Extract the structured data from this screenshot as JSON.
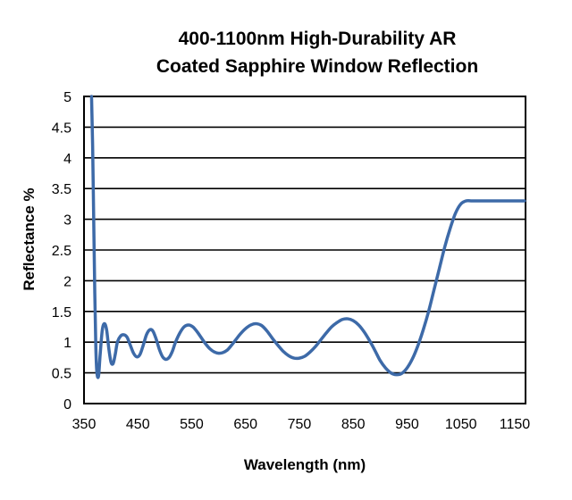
{
  "chart_data": {
    "type": "line",
    "title_lines": [
      "400-1100nm High-Durability AR",
      "Coated Sapphire Window Reflection"
    ],
    "xlabel": "Wavelength (nm)",
    "ylabel": "Reflectance %",
    "xlim": [
      350,
      1170
    ],
    "ylim": [
      0,
      5
    ],
    "x_ticks": [
      350,
      450,
      550,
      650,
      750,
      850,
      950,
      1050,
      1150
    ],
    "y_ticks": [
      0,
      0.5,
      1,
      1.5,
      2,
      2.5,
      3,
      3.5,
      4,
      4.5,
      5
    ],
    "y_tick_labels": [
      "0",
      "0.5",
      "1",
      "1.5",
      "2",
      "2.5",
      "3",
      "3.5",
      "4",
      "4.5",
      "5"
    ],
    "grid": "horizontal",
    "line_color": "#3d6aa8",
    "series": [
      {
        "x": [
          364,
          366,
          368,
          370,
          372,
          374,
          377,
          380,
          384,
          388,
          392,
          396,
          400,
          404,
          408,
          412,
          418,
          424,
          430,
          436,
          442,
          448,
          454,
          460,
          466,
          472,
          478,
          484,
          490,
          496,
          502,
          508,
          514,
          520,
          528,
          536,
          544,
          552,
          560,
          568,
          576,
          584,
          592,
          600,
          608,
          616,
          624,
          632,
          640,
          650,
          660,
          670,
          680,
          690,
          700,
          710,
          720,
          730,
          740,
          750,
          760,
          770,
          780,
          790,
          800,
          810,
          820,
          830,
          840,
          850,
          860,
          870,
          880,
          890,
          900,
          910,
          920,
          930,
          940,
          950,
          960,
          970,
          980,
          990,
          1000,
          1010,
          1020,
          1030,
          1040,
          1050,
          1060,
          1070,
          1080,
          1090,
          1100,
          1110,
          1120,
          1130,
          1140,
          1150,
          1160,
          1168
        ],
        "y": [
          5.0,
          4.2,
          3.0,
          1.8,
          0.9,
          0.5,
          0.45,
          0.8,
          1.2,
          1.3,
          1.2,
          0.9,
          0.68,
          0.65,
          0.8,
          1.0,
          1.1,
          1.12,
          1.08,
          0.95,
          0.82,
          0.76,
          0.8,
          0.95,
          1.12,
          1.2,
          1.18,
          1.05,
          0.88,
          0.76,
          0.72,
          0.75,
          0.85,
          1.0,
          1.15,
          1.25,
          1.28,
          1.25,
          1.17,
          1.07,
          0.97,
          0.89,
          0.84,
          0.82,
          0.83,
          0.87,
          0.95,
          1.04,
          1.13,
          1.22,
          1.28,
          1.3,
          1.27,
          1.18,
          1.06,
          0.95,
          0.85,
          0.78,
          0.74,
          0.74,
          0.77,
          0.84,
          0.93,
          1.04,
          1.15,
          1.25,
          1.32,
          1.37,
          1.38,
          1.35,
          1.28,
          1.17,
          1.03,
          0.87,
          0.7,
          0.58,
          0.5,
          0.47,
          0.49,
          0.58,
          0.73,
          0.94,
          1.2,
          1.5,
          1.85,
          2.2,
          2.55,
          2.85,
          3.1,
          3.25,
          3.3,
          3.3,
          3.3,
          3.3,
          3.3,
          3.3,
          3.3,
          3.3,
          3.3,
          3.3,
          3.3,
          3.3
        ]
      }
    ]
  }
}
